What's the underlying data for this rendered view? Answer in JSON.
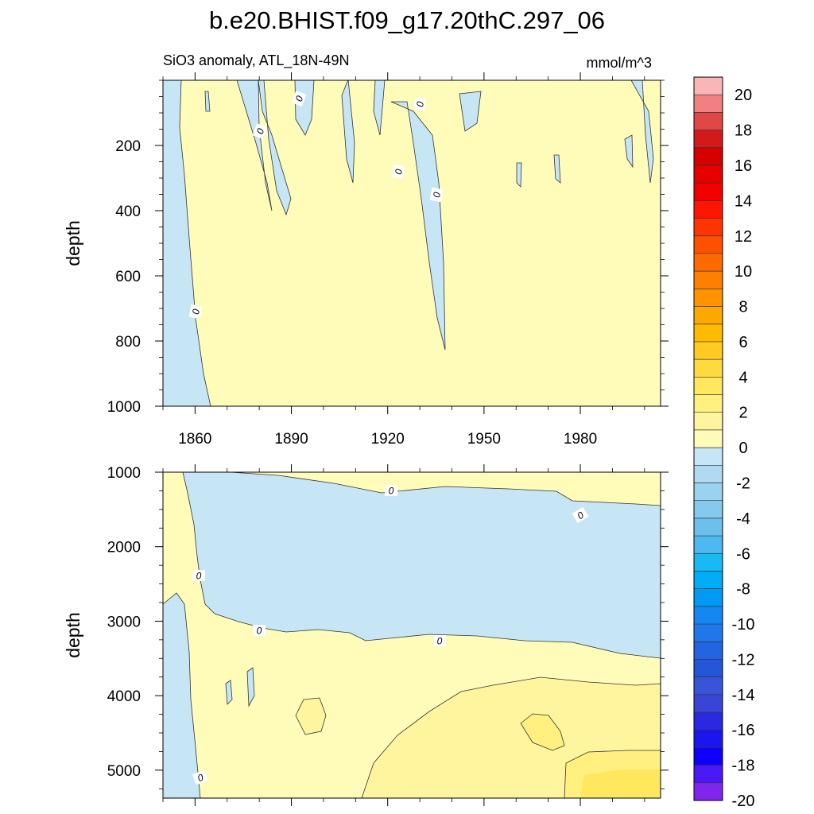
{
  "chart_data": {
    "type": "heatmap",
    "title": "b.e20.BHIST.f09_g17.20thC.297_06",
    "subtitle_left": "SiO3 anomaly, ATL_18N-49N",
    "subtitle_right": "mmol/m^3",
    "ylabel": "depth",
    "xlim": [
      1850,
      2005
    ],
    "x_ticks": [
      "1860",
      "1890",
      "1920",
      "1950",
      "1980"
    ],
    "panels": [
      {
        "name": "upper",
        "ylim": [
          0,
          1000
        ],
        "y_ticks": [
          "200",
          "400",
          "600",
          "800",
          "1000"
        ],
        "contour_labels": [
          "0",
          "0",
          "0",
          "0",
          "0",
          "0"
        ]
      },
      {
        "name": "lower",
        "ylim": [
          1000,
          5375
        ],
        "y_ticks": [
          "1000",
          "2000",
          "3000",
          "4000",
          "5000"
        ],
        "contour_labels": [
          "0",
          "0",
          "0",
          "0",
          "0",
          "0"
        ]
      }
    ],
    "colorbar": {
      "levels": [
        "20",
        "18",
        "16",
        "14",
        "12",
        "10",
        "8",
        "6",
        "4",
        "2",
        "0",
        "-2",
        "-4",
        "-6",
        "-8",
        "-10",
        "-12",
        "-14",
        "-16",
        "-18",
        "-20"
      ],
      "colors": [
        "#f9b6b6",
        "#f28080",
        "#e04848",
        "#d31a1a",
        "#d70000",
        "#e60000",
        "#f20000",
        "#ff1500",
        "#ff3500",
        "#ff5000",
        "#ff6a00",
        "#ff8000",
        "#ff9400",
        "#ffa800",
        "#ffbb00",
        "#ffcb20",
        "#ffd940",
        "#ffe75e",
        "#fff07f",
        "#fff59f",
        "#fffbb8",
        "#c6e5f5",
        "#afdaf1",
        "#9ad3ef",
        "#86c9ec",
        "#6dc0ec",
        "#4db9f0",
        "#18baf4",
        "#00acf5",
        "#0099f3",
        "#1487f2",
        "#2077ec",
        "#2264e1",
        "#2556d9",
        "#3855d9",
        "#3a45d8",
        "#2a28e0",
        "#1a16ed",
        "#0e00fb",
        "#4a19f5",
        "#8225ec"
      ]
    },
    "colors": {
      "positive_weak": "#fffbb8",
      "positive_mid": "#fff59f",
      "positive_strong": "#fff07f",
      "positive_deep": "#ffe75e",
      "negative_weak": "#c6e5f5"
    }
  }
}
